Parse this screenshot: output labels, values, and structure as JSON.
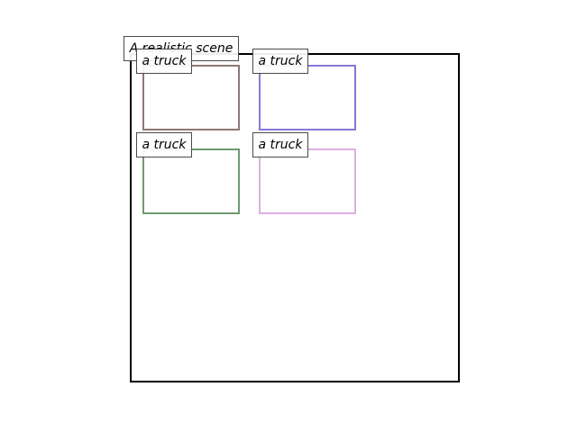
{
  "diagram": {
    "title": "A realistic scene",
    "objects": [
      {
        "label": "a truck",
        "color": "#8f7777"
      },
      {
        "label": "a truck",
        "color": "#8878d6"
      },
      {
        "label": "a truck",
        "color": "#6f9a72"
      },
      {
        "label": "a truck",
        "color": "#ddb0e2"
      }
    ]
  }
}
